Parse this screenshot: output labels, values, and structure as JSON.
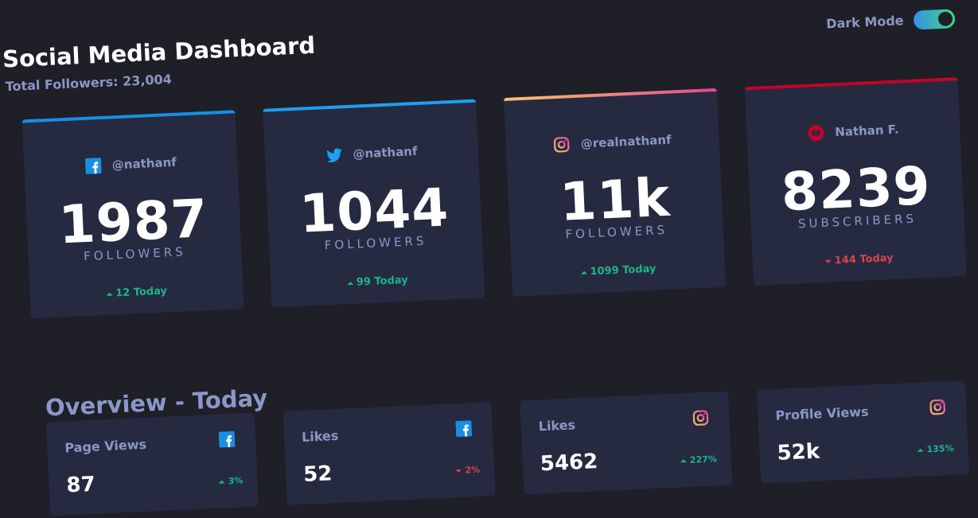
{
  "header": {
    "title": "Social Media Dashboard",
    "subtitle": "Total Followers: 23,004",
    "toggle_label": "Dark Mode"
  },
  "cards": [
    {
      "platform": "facebook",
      "handle": "@nathanf",
      "count": "1987",
      "unit": "FOLLOWERS",
      "change": "12 Today",
      "trend": "up"
    },
    {
      "platform": "twitter",
      "handle": "@nathanf",
      "count": "1044",
      "unit": "FOLLOWERS",
      "change": "99 Today",
      "trend": "up"
    },
    {
      "platform": "instagram",
      "handle": "@realnathanf",
      "count": "11k",
      "unit": "FOLLOWERS",
      "change": "1099 Today",
      "trend": "up"
    },
    {
      "platform": "youtube",
      "handle": "Nathan F.",
      "count": "8239",
      "unit": "SUBSCRIBERS",
      "change": "144 Today",
      "trend": "down"
    }
  ],
  "overview": {
    "title": "Overview - Today",
    "items": [
      {
        "platform": "facebook",
        "label": "Page Views",
        "value": "87",
        "change": "3%",
        "trend": "up"
      },
      {
        "platform": "facebook",
        "label": "Likes",
        "value": "52",
        "change": "2%",
        "trend": "down"
      },
      {
        "platform": "instagram",
        "label": "Likes",
        "value": "5462",
        "change": "227%",
        "trend": "up"
      },
      {
        "platform": "instagram",
        "label": "Profile Views",
        "value": "52k",
        "change": "135%",
        "trend": "up"
      }
    ]
  }
}
